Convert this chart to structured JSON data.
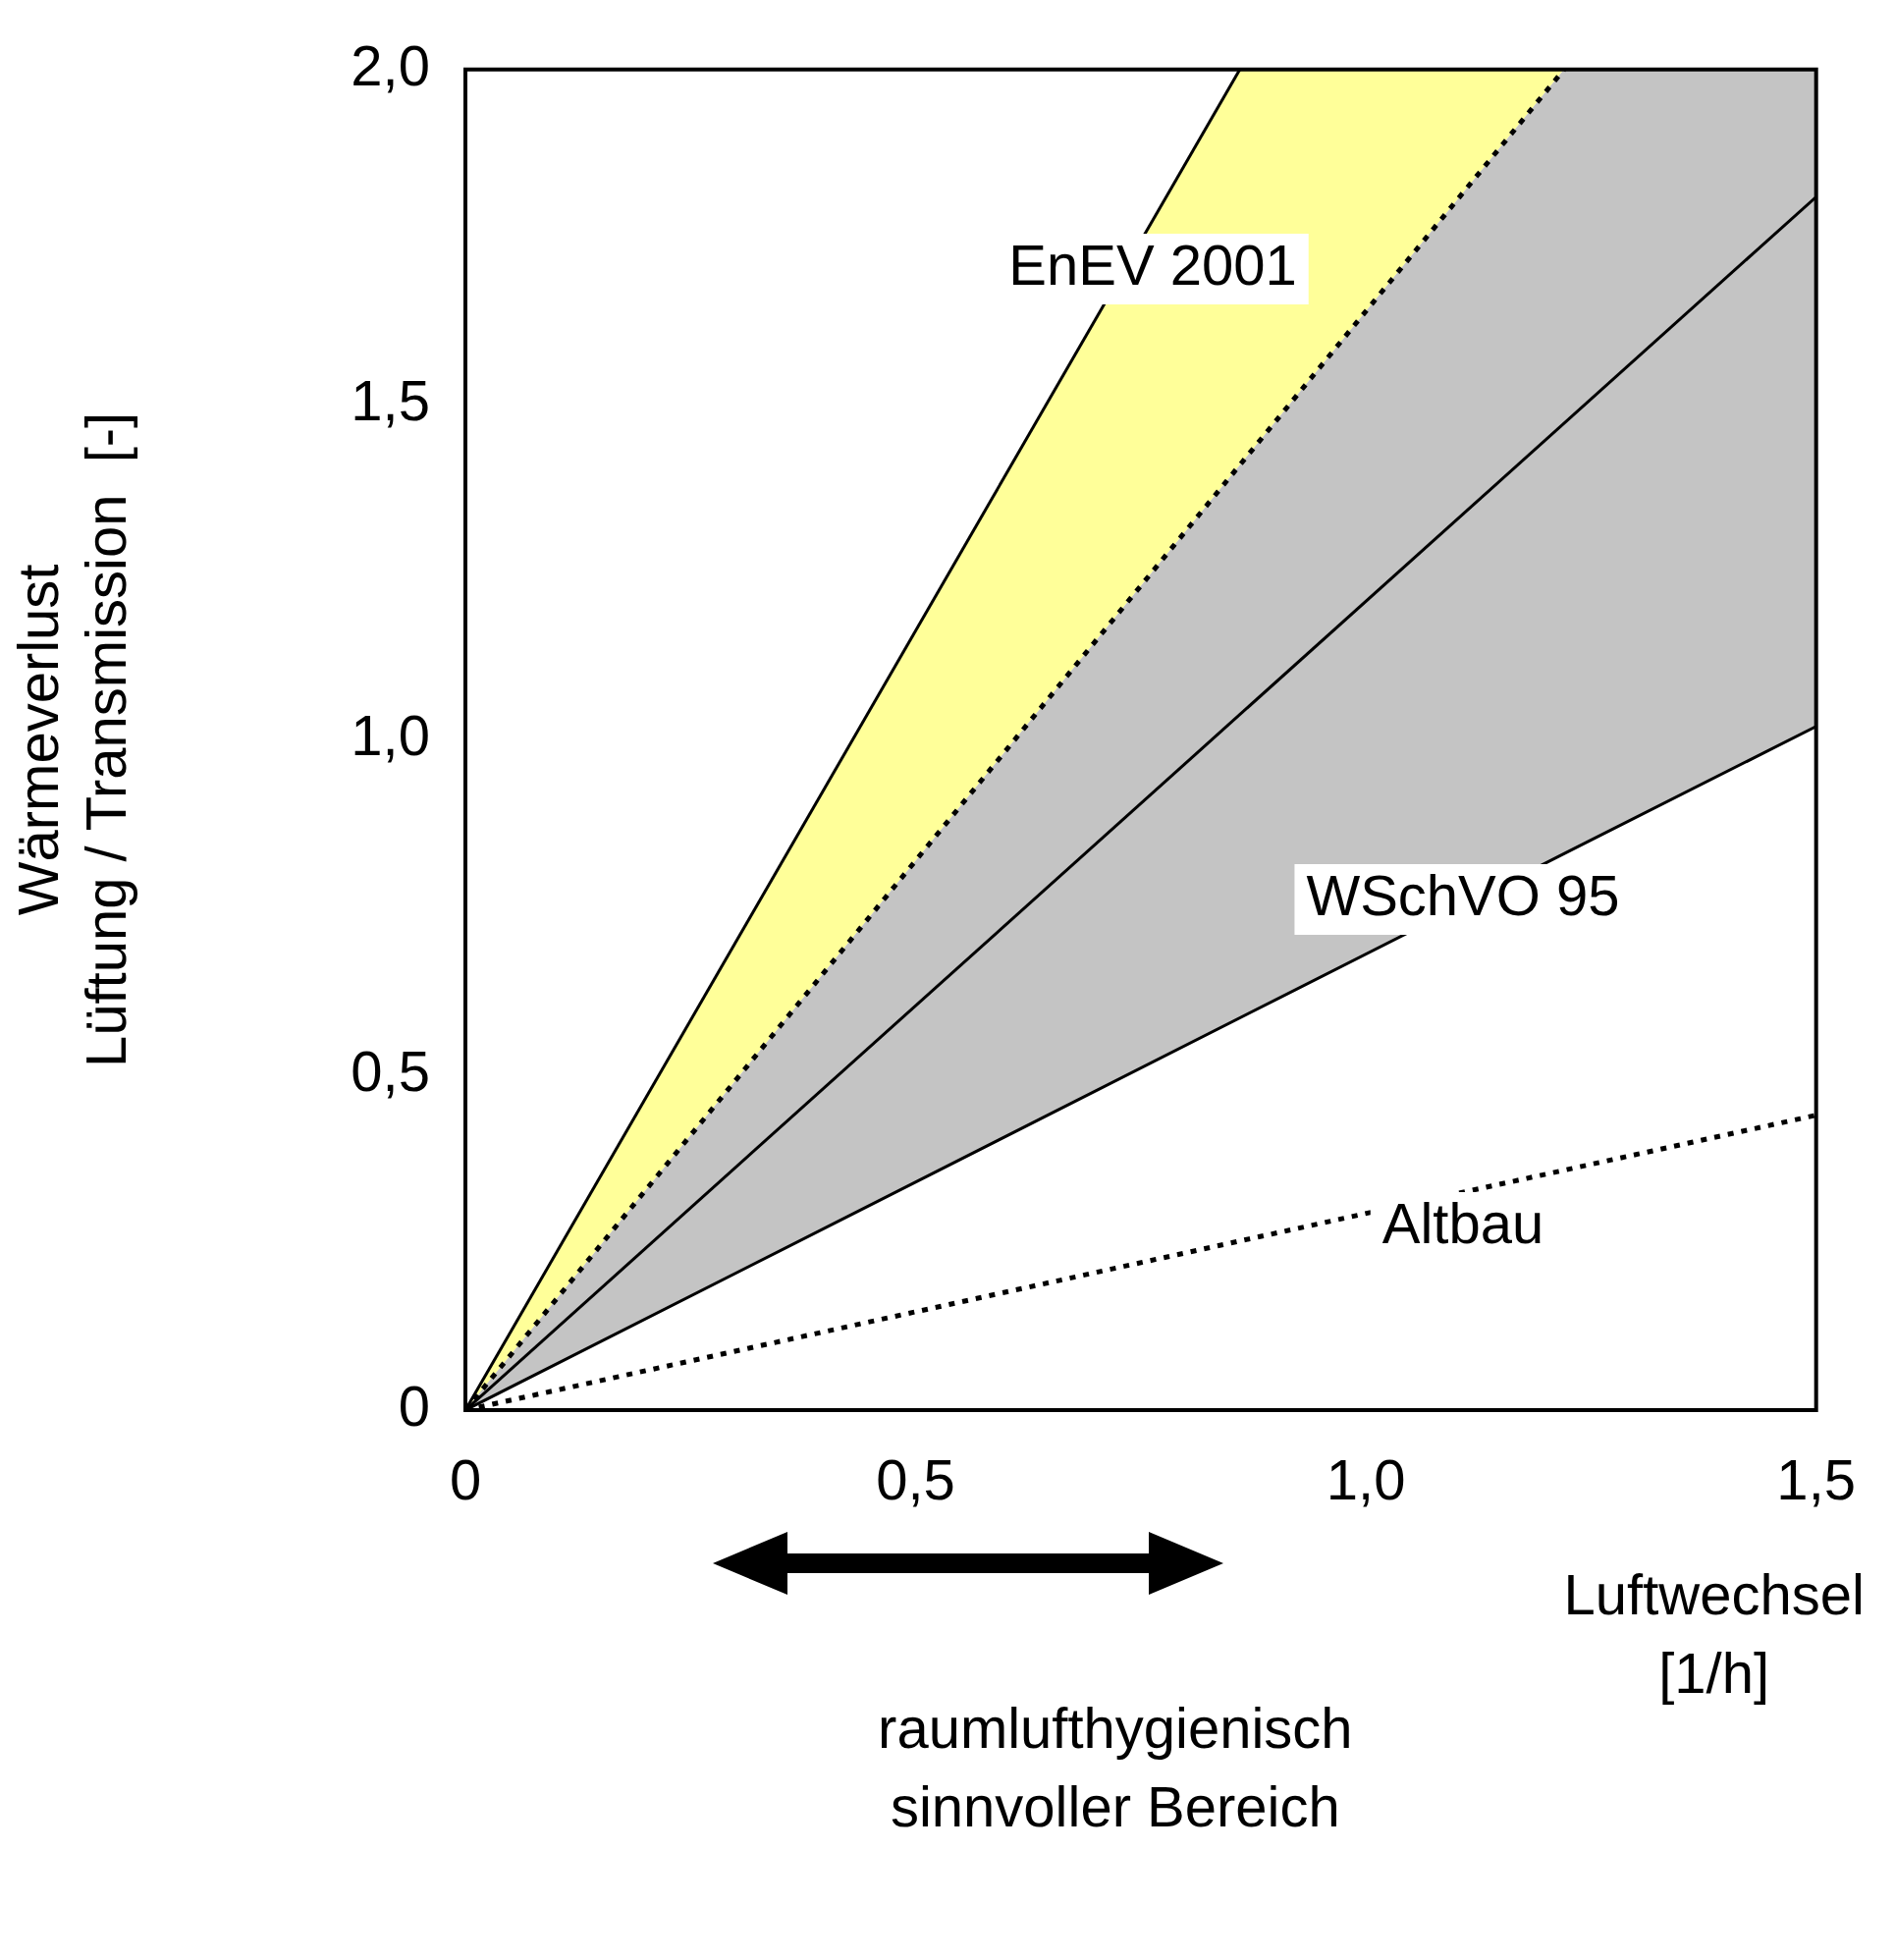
{
  "chart_data": {
    "type": "line",
    "xlabel": "Luftwechsel\n[1/h]",
    "ylabel": "Wärmeverlust\nLüftung / Transmission  [-]",
    "xlim": [
      0,
      1.5
    ],
    "xticks": [
      {
        "value": 0,
        "label": "0"
      },
      {
        "value": 0.5,
        "label": "0,5"
      },
      {
        "value": 1,
        "label": "1,0"
      },
      {
        "value": 1.5,
        "label": "1,5"
      }
    ],
    "ylim": [
      0,
      2
    ],
    "yticks": [
      {
        "value": 0,
        "label": "0"
      },
      {
        "value": 0.5,
        "label": "0,5"
      },
      {
        "value": 1,
        "label": "1,0"
      },
      {
        "value": 1.5,
        "label": "1,5"
      },
      {
        "value": 2,
        "label": "2,0"
      }
    ],
    "grid": false,
    "legend": false,
    "marker": "none",
    "series": [
      {
        "type": "line",
        "color": "#000000",
        "line_style": "dotted",
        "x": [
          0,
          0.86,
          1.22
        ],
        "values": [
          0,
          1.41,
          2.0
        ],
        "upper": [
          0,
          2.0,
          2.0
        ],
        "lower": [
          0,
          1.41,
          2.0
        ]
      },
      {
        "type": "line",
        "color": "#000000",
        "line_style": "solid",
        "x": [
          0,
          1.22,
          1.5
        ],
        "values": [
          0,
          0.83,
          1.02
        ],
        "upper": [
          0,
          2.0,
          2.0
        ],
        "lower": [
          0,
          0.83,
          1.02
        ]
      },
      {
        "type": "line",
        "color": "#000000",
        "line_style": "solid",
        "x": [
          0,
          0.86
        ],
        "values": [
          0,
          2.0
        ]
      },
      {
        "type": "line",
        "color": "#000000",
        "line_style": "solid",
        "x": [
          0,
          1.5
        ],
        "values": [
          0,
          1.81
        ]
      },
      {
        "type": "line",
        "color": "#000000",
        "line_style": "dotted",
        "x": [
          0,
          1.5
        ],
        "values": [
          0,
          0.44
        ]
      }
    ],
    "annotations": [
      "EnEV 2001",
      "WSchVO 95",
      "Altbau",
      "raumlufthygienisch\nsinnvoller Bereich"
    ]
  }
}
